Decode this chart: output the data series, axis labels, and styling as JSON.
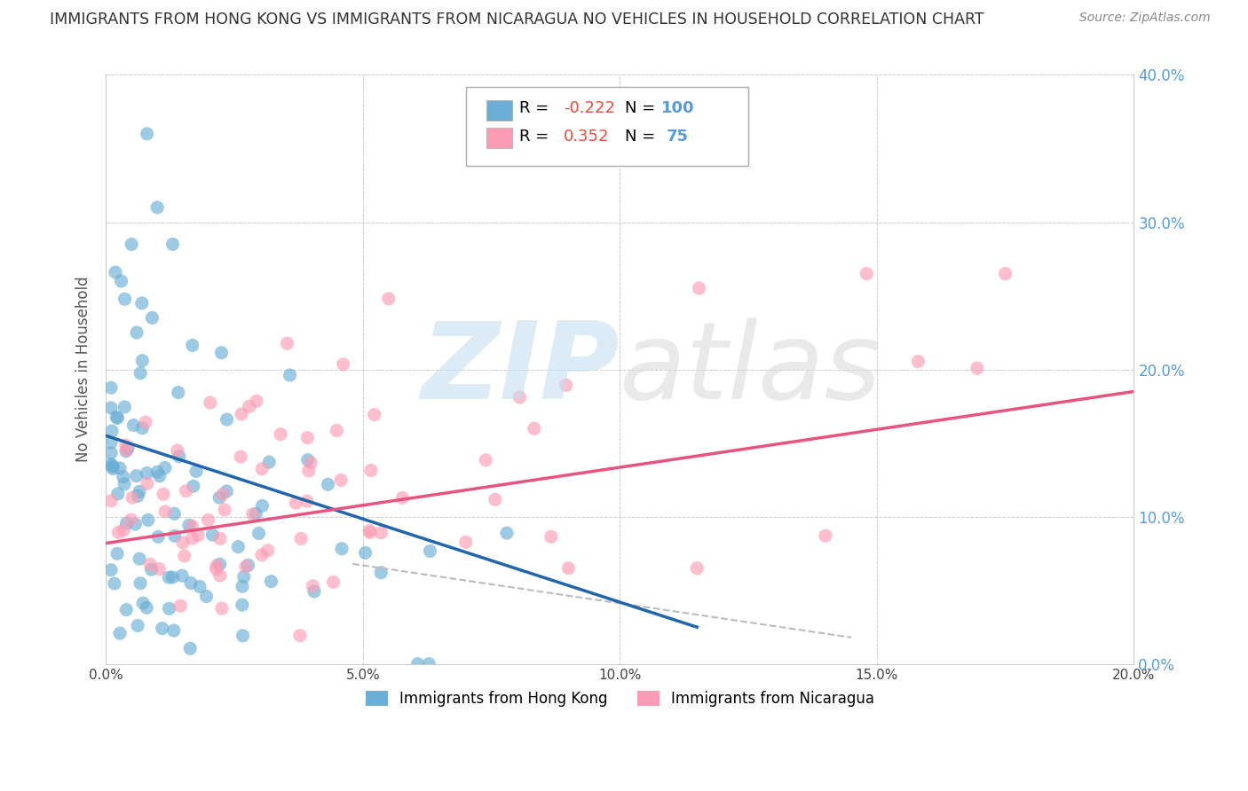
{
  "title": "IMMIGRANTS FROM HONG KONG VS IMMIGRANTS FROM NICARAGUA NO VEHICLES IN HOUSEHOLD CORRELATION CHART",
  "source": "Source: ZipAtlas.com",
  "ylabel": "No Vehicles in Household",
  "legend_label1": "Immigrants from Hong Kong",
  "legend_label2": "Immigrants from Nicaragua",
  "R1": -0.222,
  "N1": 100,
  "R2": 0.352,
  "N2": 75,
  "xlim": [
    0.0,
    0.2
  ],
  "ylim": [
    0.0,
    0.4
  ],
  "xticks": [
    0.0,
    0.05,
    0.1,
    0.15,
    0.2
  ],
  "yticks": [
    0.0,
    0.1,
    0.2,
    0.3,
    0.4
  ],
  "color_hk": "#6baed6",
  "color_ni": "#fc9cb4",
  "watermark_zip_color": "#c5dff0",
  "watermark_atlas_color": "#d8d8d8",
  "bg_color": "#ffffff",
  "grid_color": "#cccccc",
  "trend_hk_color": "#2166ac",
  "trend_ni_color": "#e75480",
  "trend_dash_color": "#bbbbbb",
  "legend_text_color": "#5b9bd5",
  "r_value_color": "#e74c3c",
  "title_color": "#333333",
  "source_color": "#888888",
  "ylabel_color": "#555555",
  "hk_trend_x0": 0.0,
  "hk_trend_y0": 0.155,
  "hk_trend_x1": 0.115,
  "hk_trend_y1": 0.025,
  "ni_trend_x0": 0.0,
  "ni_trend_y0": 0.082,
  "ni_trend_x1": 0.2,
  "ni_trend_y1": 0.185,
  "dash_trend_x0": 0.048,
  "dash_trend_y0": 0.068,
  "dash_trend_x1": 0.145,
  "dash_trend_y1": 0.018
}
